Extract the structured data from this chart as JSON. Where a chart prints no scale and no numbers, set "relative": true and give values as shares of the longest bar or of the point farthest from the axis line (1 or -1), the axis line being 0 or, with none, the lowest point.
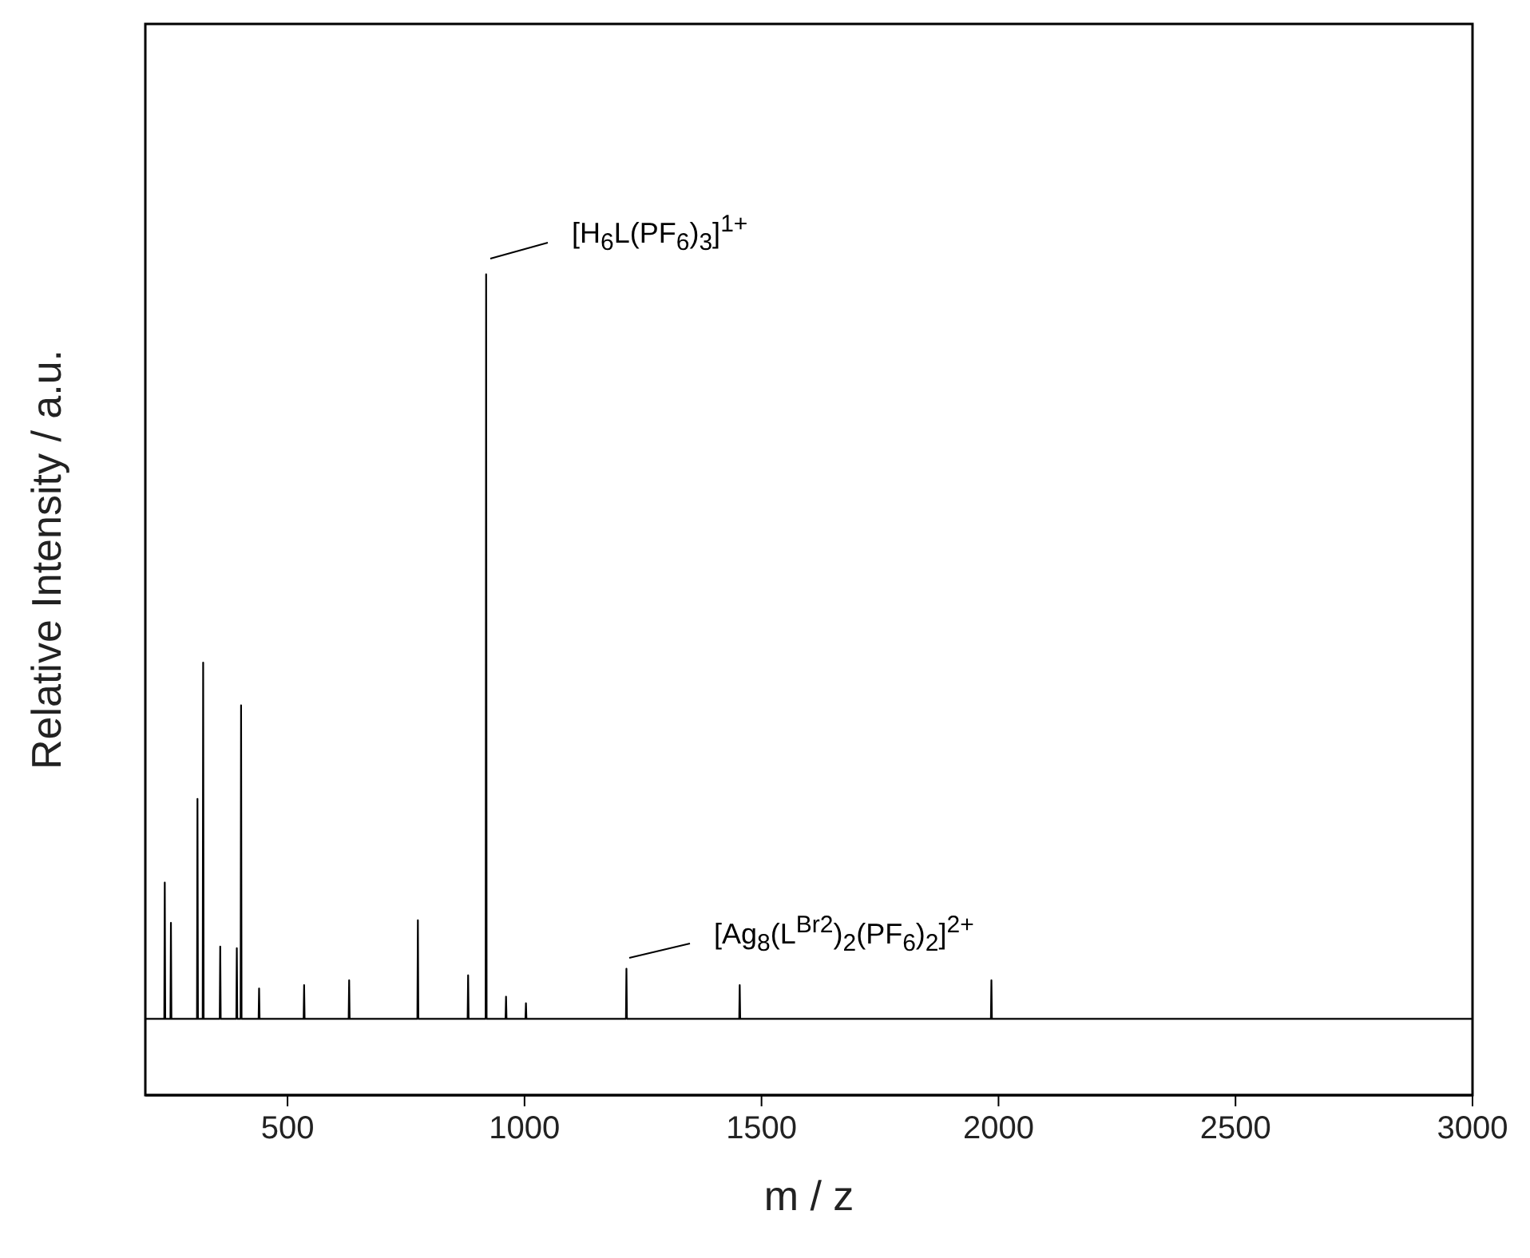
{
  "chart_data": {
    "type": "line",
    "relative": true,
    "xlabel": "m / z",
    "ylabel": "Relative Intensity / a.u.",
    "xlim": [
      200,
      3000
    ],
    "xticks": [
      500,
      1000,
      1500,
      2000,
      2500,
      3000
    ],
    "marker": "none",
    "line_style": "solid",
    "series": [
      {
        "color": "#000000",
        "x": [
          200,
          240,
          241,
          242,
          253,
          254,
          255,
          309,
          310,
          311,
          321,
          322,
          323,
          357,
          358,
          359,
          392,
          393,
          394,
          401,
          402,
          403,
          439,
          440,
          441,
          534,
          535,
          536,
          629,
          630,
          631,
          774,
          775,
          776,
          880,
          881,
          882,
          918,
          919,
          920,
          960,
          961,
          962,
          1002,
          1003,
          1004,
          1214,
          1215,
          1216,
          1453,
          1454,
          1455,
          1984,
          1985,
          1986,
          3000
        ],
        "values": [
          0.093,
          0.093,
          0.259,
          0.093,
          0.093,
          0.21,
          0.093,
          0.093,
          0.361,
          0.093,
          0.093,
          0.527,
          0.093,
          0.093,
          0.181,
          0.093,
          0.093,
          0.179,
          0.093,
          0.093,
          0.475,
          0.093,
          0.093,
          0.13,
          0.093,
          0.093,
          0.134,
          0.093,
          0.093,
          0.14,
          0.093,
          0.093,
          0.213,
          0.093,
          0.093,
          0.146,
          0.093,
          0.093,
          1,
          0.093,
          0.093,
          0.12,
          0.093,
          0.093,
          0.112,
          0.093,
          0.093,
          0.154,
          0.093,
          0.093,
          0.134,
          0.093,
          0.093,
          0.14,
          0.093,
          0.093
        ]
      }
    ],
    "annotations": [
      "[H$_{6}$L(PF$_{6}$)$_{3}$]$^{1+}$",
      "[Ag$_{8}$(L$^{Br2}$)$_{2}$(PF$_{6}$)$_{2}$]$^{2+}$"
    ]
  }
}
